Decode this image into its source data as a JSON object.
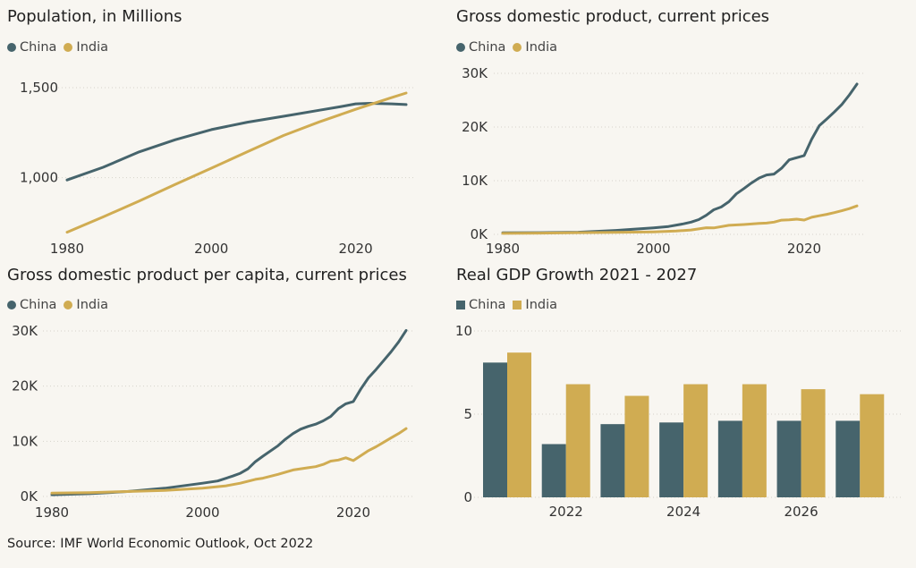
{
  "source": "Source: IMF World Economic Outlook, Oct 2022",
  "colors": {
    "china": "#46646c",
    "india": "#d0ac52",
    "grid": "#d6d3cc"
  },
  "chart_data": [
    {
      "id": "population",
      "type": "line",
      "title": "Population, in Millions",
      "legend": [
        "China",
        "India"
      ],
      "xlim": [
        1980,
        2027
      ],
      "ylim": [
        700,
        1500
      ],
      "xticks": [
        1980,
        2000,
        2020
      ],
      "yticks": [
        1000,
        1500
      ],
      "ytick_labels": [
        "1,000",
        "1,500"
      ],
      "series": [
        {
          "name": "China",
          "x": [
            1980,
            1985,
            1990,
            1995,
            2000,
            2005,
            2010,
            2015,
            2018,
            2020,
            2022,
            2025,
            2027
          ],
          "y": [
            987,
            1058,
            1143,
            1211,
            1267,
            1308,
            1341,
            1375,
            1395,
            1410,
            1413,
            1410,
            1406
          ]
        },
        {
          "name": "India",
          "x": [
            1980,
            1985,
            1990,
            1995,
            2000,
            2005,
            2010,
            2015,
            2020,
            2025,
            2027
          ],
          "y": [
            697,
            782,
            870,
            963,
            1053,
            1144,
            1234,
            1310,
            1380,
            1445,
            1470
          ]
        }
      ]
    },
    {
      "id": "gdp",
      "type": "line",
      "title": "Gross domestic product, current prices",
      "legend": [
        "China",
        "India"
      ],
      "xlim": [
        1980,
        2027
      ],
      "ylim": [
        0,
        30000
      ],
      "xticks": [
        1980,
        2000,
        2020
      ],
      "yticks": [
        0,
        10000,
        20000,
        30000
      ],
      "ytick_labels": [
        "0K",
        "10K",
        "20K",
        "30K"
      ],
      "series": [
        {
          "name": "China",
          "x": [
            1980,
            1985,
            1990,
            1995,
            2000,
            2002,
            2004,
            2005,
            2006,
            2007,
            2008,
            2009,
            2010,
            2011,
            2012,
            2013,
            2014,
            2015,
            2016,
            2017,
            2018,
            2019,
            2020,
            2021,
            2022,
            2023,
            2024,
            2025,
            2026,
            2027
          ],
          "y": [
            300,
            310,
            400,
            740,
            1210,
            1470,
            1960,
            2290,
            2750,
            3550,
            4590,
            5100,
            6090,
            7550,
            8530,
            9570,
            10480,
            11060,
            11230,
            12310,
            13890,
            14280,
            14690,
            17730,
            20250,
            21500,
            22800,
            24200,
            26000,
            28000
          ]
        },
        {
          "name": "India",
          "x": [
            1980,
            1985,
            1990,
            1995,
            2000,
            2003,
            2005,
            2007,
            2008,
            2010,
            2012,
            2014,
            2015,
            2016,
            2017,
            2018,
            2019,
            2020,
            2021,
            2022,
            2023,
            2024,
            2025,
            2026,
            2027
          ],
          "y": [
            190,
            230,
            320,
            360,
            470,
            620,
            820,
            1240,
            1200,
            1680,
            1830,
            2040,
            2100,
            2290,
            2650,
            2700,
            2830,
            2670,
            3180,
            3470,
            3740,
            4050,
            4400,
            4800,
            5300
          ]
        }
      ]
    },
    {
      "id": "gdp_per_capita",
      "type": "line",
      "title": "Gross domestic product per capita, current prices",
      "legend": [
        "China",
        "India"
      ],
      "xlim": [
        1980,
        2027
      ],
      "ylim": [
        0,
        30000
      ],
      "xticks": [
        1980,
        2000,
        2020
      ],
      "yticks": [
        0,
        10000,
        20000,
        30000
      ],
      "ytick_labels": [
        "0K",
        "10K",
        "20K",
        "30K"
      ],
      "series": [
        {
          "name": "China",
          "x": [
            1980,
            1985,
            1990,
            1995,
            2000,
            2002,
            2004,
            2005,
            2006,
            2007,
            2008,
            2010,
            2011,
            2012,
            2013,
            2014,
            2015,
            2016,
            2017,
            2018,
            2019,
            2020,
            2021,
            2022,
            2023,
            2024,
            2025,
            2026,
            2027
          ],
          "y": [
            300,
            500,
            900,
            1500,
            2400,
            2800,
            3700,
            4200,
            5000,
            6300,
            7300,
            9200,
            10400,
            11400,
            12200,
            12700,
            13100,
            13700,
            14500,
            15900,
            16800,
            17200,
            19500,
            21500,
            23000,
            24600,
            26200,
            28000,
            30100
          ]
        },
        {
          "name": "India",
          "x": [
            1980,
            1985,
            1990,
            1995,
            2000,
            2003,
            2005,
            2007,
            2008,
            2010,
            2012,
            2014,
            2015,
            2016,
            2017,
            2018,
            2019,
            2020,
            2021,
            2022,
            2023,
            2024,
            2025,
            2026,
            2027
          ],
          "y": [
            600,
            700,
            900,
            1100,
            1500,
            1900,
            2400,
            3100,
            3300,
            4000,
            4800,
            5200,
            5400,
            5800,
            6400,
            6600,
            7000,
            6500,
            7400,
            8300,
            9000,
            9800,
            10600,
            11400,
            12300
          ]
        }
      ]
    },
    {
      "id": "real_gdp_growth",
      "type": "bar",
      "title": "Real GDP Growth 2021 - 2027",
      "legend": [
        "China",
        "India"
      ],
      "categories": [
        2021,
        2022,
        2023,
        2024,
        2025,
        2026,
        2027
      ],
      "xtick_labels": [
        "",
        "2022",
        "",
        "2024",
        "",
        "2026",
        ""
      ],
      "ylim": [
        0,
        10
      ],
      "yticks": [
        0,
        5,
        10
      ],
      "ytick_labels": [
        "0",
        "5",
        "10"
      ],
      "series": [
        {
          "name": "China",
          "values": [
            8.1,
            3.2,
            4.4,
            4.5,
            4.6,
            4.6,
            4.6
          ]
        },
        {
          "name": "India",
          "values": [
            8.7,
            6.8,
            6.1,
            6.8,
            6.8,
            6.5,
            6.2
          ]
        }
      ]
    }
  ]
}
